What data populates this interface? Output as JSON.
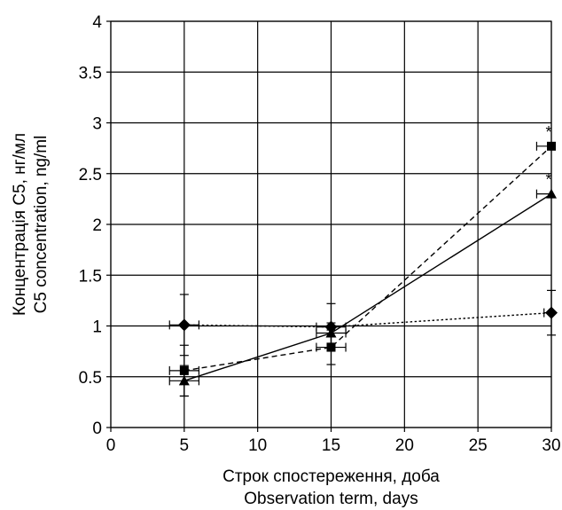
{
  "chart_data": {
    "type": "line",
    "xlabel": [
      "Строк спостереження, доба",
      "Observation term, days"
    ],
    "ylabel": [
      "Концентрація С5, нг/мл",
      "C5 concentration, ng/ml"
    ],
    "xlim": [
      0,
      30
    ],
    "ylim": [
      0,
      4
    ],
    "xticks": [
      "0",
      "5",
      "10",
      "15",
      "20",
      "25",
      "30"
    ],
    "yticks": [
      "0",
      "0.5",
      "1",
      "1.5",
      "2",
      "2.5",
      "3",
      "3.5",
      "4"
    ],
    "grid": true,
    "series": [
      {
        "marker": "square",
        "line_style": "dashed",
        "points": [
          {
            "x": 5,
            "y": 0.56,
            "yerr": 0.25,
            "xerr": 1
          },
          {
            "x": 15,
            "y": 0.79,
            "yerr": 0.17,
            "xerr": 1
          },
          {
            "x": 30,
            "y": 2.77,
            "yerr": 0,
            "xerr": 1
          }
        ]
      },
      {
        "marker": "triangle",
        "line_style": "solid",
        "points": [
          {
            "x": 5,
            "y": 0.46,
            "yerr": 0.15,
            "xerr": 1
          },
          {
            "x": 15,
            "y": 0.93,
            "yerr": 0.1,
            "xerr": 1
          },
          {
            "x": 30,
            "y": 2.3,
            "yerr": 0,
            "xerr": 1
          }
        ]
      },
      {
        "marker": "diamond",
        "line_style": "dotted",
        "points": [
          {
            "x": 5,
            "y": 1.01,
            "yerr": 0.3,
            "xerr": 1
          },
          {
            "x": 15,
            "y": 0.99,
            "yerr": 0.23,
            "xerr": 1
          },
          {
            "x": 30,
            "y": 1.13,
            "yerr": 0.22,
            "xerr": 0.5
          }
        ]
      }
    ],
    "annotations": [
      {
        "text": "*",
        "x": 30,
        "y": 2.77
      },
      {
        "text": "*",
        "x": 30,
        "y": 2.3
      }
    ]
  }
}
